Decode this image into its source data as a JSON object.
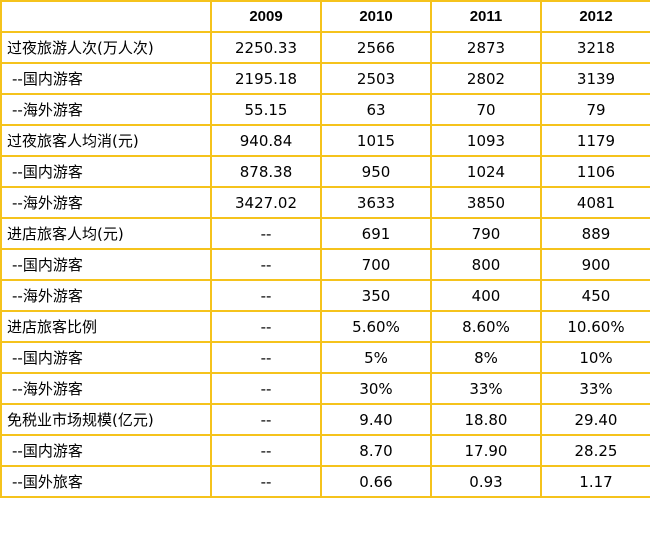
{
  "header": [
    "",
    "2009",
    "2010",
    "2011",
    "2012"
  ],
  "rows": [
    {
      "label": "过夜旅游人次(万人次)",
      "sub": false,
      "values": [
        "2250.33",
        "2566",
        "2873",
        "3218"
      ]
    },
    {
      "label": "--国内游客",
      "sub": true,
      "values": [
        "2195.18",
        "2503",
        "2802",
        "3139"
      ]
    },
    {
      "label": "--海外游客",
      "sub": true,
      "values": [
        "55.15",
        "63",
        "70",
        "79"
      ]
    },
    {
      "label": "过夜旅客人均消(元)",
      "sub": false,
      "values": [
        "940.84",
        "1015",
        "1093",
        "1179"
      ]
    },
    {
      "label": "--国内游客",
      "sub": true,
      "values": [
        "878.38",
        "950",
        "1024",
        "1106"
      ]
    },
    {
      "label": "--海外游客",
      "sub": true,
      "values": [
        "3427.02",
        "3633",
        "3850",
        "4081"
      ]
    },
    {
      "label": "进店旅客人均(元)",
      "sub": false,
      "values": [
        "--",
        "691",
        "790",
        "889"
      ]
    },
    {
      "label": "--国内游客",
      "sub": true,
      "values": [
        "--",
        "700",
        "800",
        "900"
      ]
    },
    {
      "label": "--海外游客",
      "sub": true,
      "values": [
        "--",
        "350",
        "400",
        "450"
      ]
    },
    {
      "label": "进店旅客比例",
      "sub": false,
      "values": [
        "--",
        "5.60%",
        "8.60%",
        "10.60%"
      ]
    },
    {
      "label": "--国内游客",
      "sub": true,
      "values": [
        "--",
        "5%",
        "8%",
        "10%"
      ]
    },
    {
      "label": "--海外游客",
      "sub": true,
      "values": [
        "--",
        "30%",
        "33%",
        "33%"
      ]
    },
    {
      "label": "免税业市场规模(亿元)",
      "sub": false,
      "values": [
        "--",
        "9.40",
        "18.80",
        "29.40"
      ]
    },
    {
      "label": "--国内游客",
      "sub": true,
      "values": [
        "--",
        "8.70",
        "17.90",
        "28.25"
      ]
    },
    {
      "label": "--国外旅客",
      "sub": true,
      "values": [
        "--",
        "0.66",
        "0.93",
        "1.17"
      ]
    }
  ],
  "colors": {
    "border": "#f5c31c",
    "text": "#000000",
    "background": "#ffffff"
  }
}
